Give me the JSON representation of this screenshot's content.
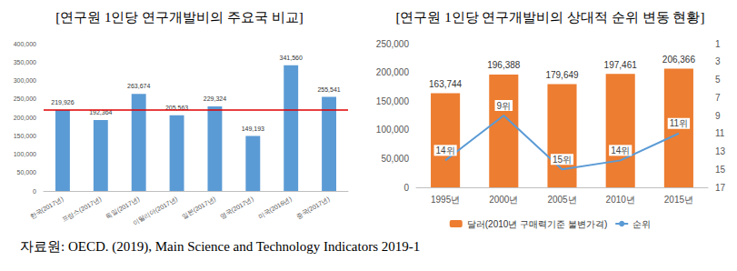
{
  "chart_data": [
    {
      "type": "bar",
      "title": "[연구원 1인당 연구개발비의 주요국 비교]",
      "categories": [
        "한국(2017년)",
        "프랑스(2017년)",
        "독일(2017년)",
        "이탈리아(2017년)",
        "일본(2017년)",
        "영국(2017년)",
        "미국(2016년)",
        "중국(2017년)"
      ],
      "values": [
        219926,
        192364,
        263674,
        205563,
        229324,
        149193,
        341560,
        255541
      ],
      "value_labels": [
        "219,926",
        "192,364",
        "263,674",
        "205,563",
        "229,324",
        "149,193",
        "341,560",
        "255,541"
      ],
      "color": "#5b9bd5",
      "ylim": [
        0,
        400000
      ],
      "yticks": [
        0,
        {
          "value": 50000,
          "label": "50,000"
        },
        {
          "value": 100000,
          "label": "100,000"
        },
        {
          "value": 150000,
          "label": "150,000"
        },
        {
          "value": 200000,
          "label": "200,000"
        },
        {
          "value": 250000,
          "label": "250,000"
        },
        {
          "value": 300000,
          "label": "300,000"
        },
        {
          "value": 350000,
          "label": "350,000"
        },
        {
          "value": 400000,
          "label": "400,000"
        }
      ],
      "reference_line": {
        "value": 219926,
        "color": "#e00000"
      },
      "grid": false,
      "data_labels": true
    },
    {
      "type": "bar",
      "title": "[연구원 1인당 연구개발비의 상대적 순위 변동 현황]",
      "categories": [
        "1995년",
        "2000년",
        "2005년",
        "2010년",
        "2015년"
      ],
      "series": [
        {
          "name": "달러(2010년 구매력기준 불변가격)",
          "type": "bar",
          "color": "#ed7d31",
          "values": [
            163744,
            196388,
            179649,
            197461,
            206366
          ],
          "value_labels": [
            "163,744",
            "196,388",
            "179,649",
            "197,461",
            "206,366"
          ]
        },
        {
          "name": "순위",
          "type": "line",
          "color": "#5b9bd5",
          "axis": "y2",
          "values": [
            14,
            9,
            15,
            14,
            11
          ],
          "value_labels": [
            "14위",
            "9위",
            "15위",
            "14위",
            "11위"
          ]
        }
      ],
      "ylim": [
        0,
        250000
      ],
      "yticks": [
        0,
        {
          "value": 50000,
          "label": "50,000"
        },
        {
          "value": 100000,
          "label": "100,000"
        },
        {
          "value": 150000,
          "label": "150,000"
        },
        {
          "value": 200000,
          "label": "200,000"
        },
        {
          "value": 250000,
          "label": "250,000"
        }
      ],
      "y2lim": [
        17,
        1
      ],
      "y2ticks": [
        1,
        3,
        5,
        7,
        9,
        11,
        13,
        15,
        17
      ],
      "legend": "bottom",
      "grid": false,
      "data_labels": true
    }
  ],
  "source": "자료원: OECD. (2019), Main Science and Technology Indicators 2019-1"
}
